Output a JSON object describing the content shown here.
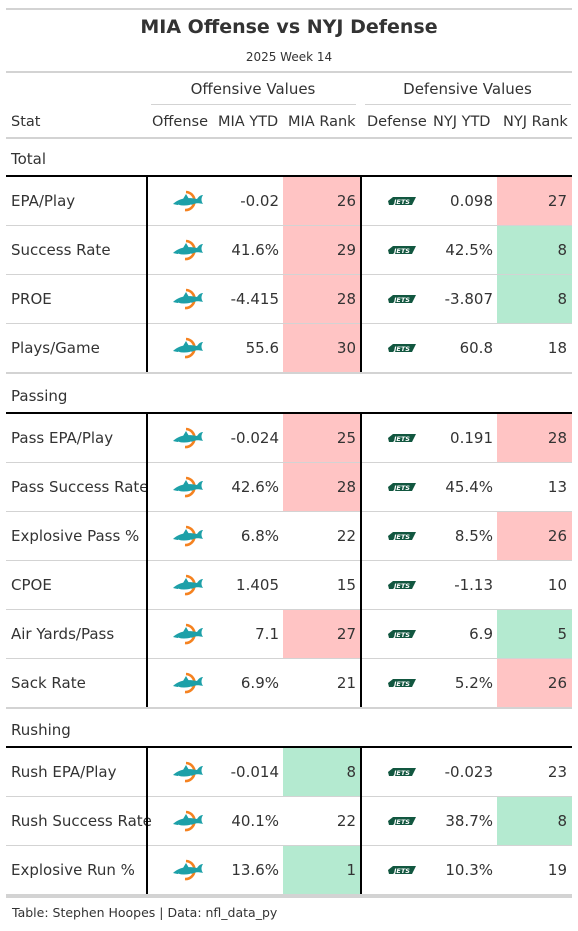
{
  "header": {
    "title": "MIA Offense vs NYJ Defense",
    "subtitle": "2025 Week 14"
  },
  "spanners": {
    "offense": "Offensive Values",
    "defense": "Defensive Values"
  },
  "columns": {
    "stat": "Stat",
    "offense": "Offense",
    "mia_ytd": "MIA YTD",
    "mia_rank": "MIA Rank",
    "defense": "Defense",
    "nyj_ytd": "NYJ YTD",
    "nyj_rank": "NYJ Rank"
  },
  "colors": {
    "bad": "#ffc4c4",
    "good": "#b4ead0",
    "mia_teal": "#1da0a8",
    "mia_orange": "#f58220",
    "nyj_green": "#125740"
  },
  "groups": [
    {
      "label": "Total",
      "rows": [
        {
          "stat": "EPA/Play",
          "mia_ytd": "-0.02",
          "mia_rank": "26",
          "mia_color": "bad",
          "nyj_ytd": "0.098",
          "nyj_rank": "27",
          "nyj_color": "bad"
        },
        {
          "stat": "Success Rate",
          "mia_ytd": "41.6%",
          "mia_rank": "29",
          "mia_color": "bad",
          "nyj_ytd": "42.5%",
          "nyj_rank": "8",
          "nyj_color": "good"
        },
        {
          "stat": "PROE",
          "mia_ytd": "-4.415",
          "mia_rank": "28",
          "mia_color": "bad",
          "nyj_ytd": "-3.807",
          "nyj_rank": "8",
          "nyj_color": "good"
        },
        {
          "stat": "Plays/Game",
          "mia_ytd": "55.6",
          "mia_rank": "30",
          "mia_color": "bad",
          "nyj_ytd": "60.8",
          "nyj_rank": "18",
          "nyj_color": "none"
        }
      ]
    },
    {
      "label": "Passing",
      "rows": [
        {
          "stat": "Pass EPA/Play",
          "mia_ytd": "-0.024",
          "mia_rank": "25",
          "mia_color": "bad",
          "nyj_ytd": "0.191",
          "nyj_rank": "28",
          "nyj_color": "bad"
        },
        {
          "stat": "Pass Success Rate",
          "mia_ytd": "42.6%",
          "mia_rank": "28",
          "mia_color": "bad",
          "nyj_ytd": "45.4%",
          "nyj_rank": "13",
          "nyj_color": "none"
        },
        {
          "stat": "Explosive Pass %",
          "mia_ytd": "6.8%",
          "mia_rank": "22",
          "mia_color": "none",
          "nyj_ytd": "8.5%",
          "nyj_rank": "26",
          "nyj_color": "bad"
        },
        {
          "stat": "CPOE",
          "mia_ytd": "1.405",
          "mia_rank": "15",
          "mia_color": "none",
          "nyj_ytd": "-1.13",
          "nyj_rank": "10",
          "nyj_color": "none"
        },
        {
          "stat": "Air Yards/Pass",
          "mia_ytd": "7.1",
          "mia_rank": "27",
          "mia_color": "bad",
          "nyj_ytd": "6.9",
          "nyj_rank": "5",
          "nyj_color": "good"
        },
        {
          "stat": "Sack Rate",
          "mia_ytd": "6.9%",
          "mia_rank": "21",
          "mia_color": "none",
          "nyj_ytd": "5.2%",
          "nyj_rank": "26",
          "nyj_color": "bad"
        }
      ]
    },
    {
      "label": "Rushing",
      "rows": [
        {
          "stat": "Rush EPA/Play",
          "mia_ytd": "-0.014",
          "mia_rank": "8",
          "mia_color": "good",
          "nyj_ytd": "-0.023",
          "nyj_rank": "23",
          "nyj_color": "none"
        },
        {
          "stat": "Rush Success Rate",
          "mia_ytd": "40.1%",
          "mia_rank": "22",
          "mia_color": "none",
          "nyj_ytd": "38.7%",
          "nyj_rank": "8",
          "nyj_color": "good"
        },
        {
          "stat": "Explosive Run %",
          "mia_ytd": "13.6%",
          "mia_rank": "1",
          "mia_color": "good",
          "nyj_ytd": "10.3%",
          "nyj_rank": "19",
          "nyj_color": "none"
        }
      ]
    }
  ],
  "icons": {
    "offense": "dolphins-logo-icon",
    "defense": "jets-logo-icon"
  },
  "footer": "Table: Stephen Hoopes | Data: nfl_data_py"
}
